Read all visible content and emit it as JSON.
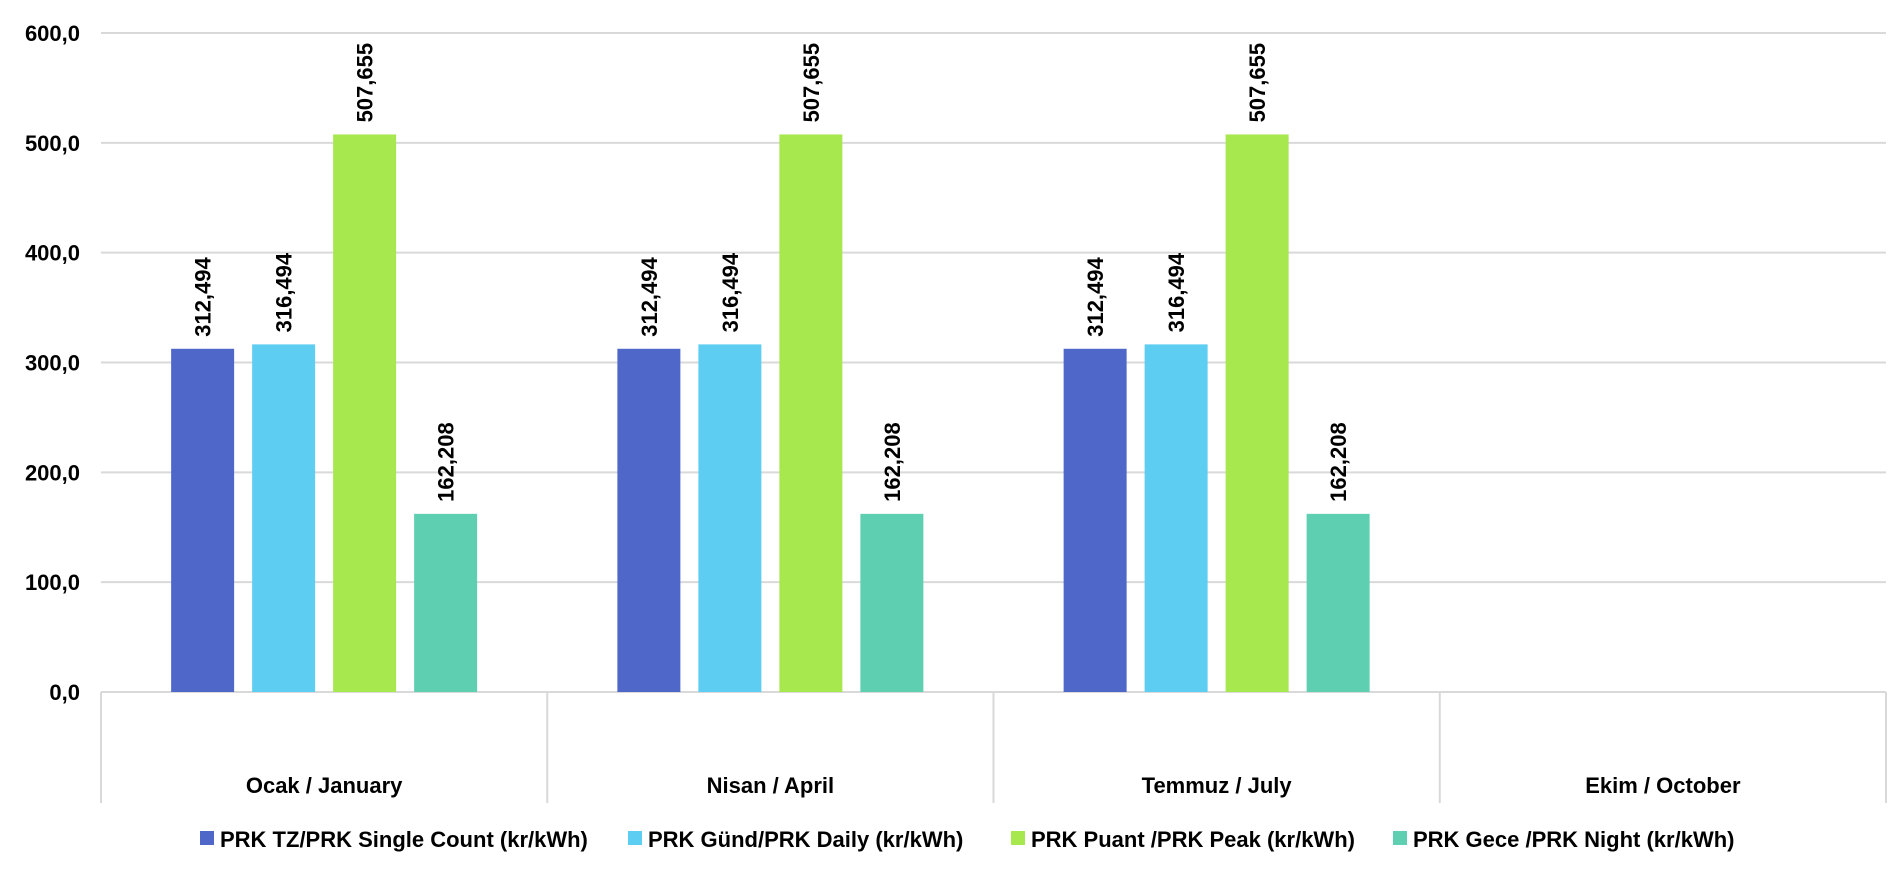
{
  "chart_data": {
    "type": "bar",
    "categories": [
      "Ocak / January",
      "Nisan / April",
      "Temmuz / July",
      "Ekim / October"
    ],
    "series": [
      {
        "name": "PRK TZ/PRK Single Count (kr/kWh)",
        "color": "#4F67C9",
        "values": [
          312.494,
          312.494,
          312.494,
          null
        ],
        "labels": [
          "312,494",
          "312,494",
          "312,494",
          ""
        ]
      },
      {
        "name": "PRK Günd/PRK Daily (kr/kWh)",
        "color": "#5ECDF2",
        "values": [
          316.494,
          316.494,
          316.494,
          null
        ],
        "labels": [
          "316,494",
          "316,494",
          "316,494",
          ""
        ]
      },
      {
        "name": "PRK Puant /PRK Peak (kr/kWh)",
        "color": "#A8E84F",
        "values": [
          507.655,
          507.655,
          507.655,
          null
        ],
        "labels": [
          "507,655",
          "507,655",
          "507,655",
          ""
        ]
      },
      {
        "name": "PRK Gece /PRK Night (kr/kWh)",
        "color": "#5FCFB2",
        "values": [
          162.208,
          162.208,
          162.208,
          null
        ],
        "labels": [
          "162,208",
          "162,208",
          "162,208",
          ""
        ]
      }
    ],
    "ylim": [
      0,
      600
    ],
    "yticks": [
      0,
      100,
      200,
      300,
      400,
      500,
      600
    ],
    "ytick_labels": [
      "0,0",
      "100,0",
      "200,0",
      "300,0",
      "400,0",
      "500,0",
      "600,0"
    ],
    "grid": true,
    "legend_position": "bottom",
    "title": "",
    "xlabel": "",
    "ylabel": ""
  }
}
